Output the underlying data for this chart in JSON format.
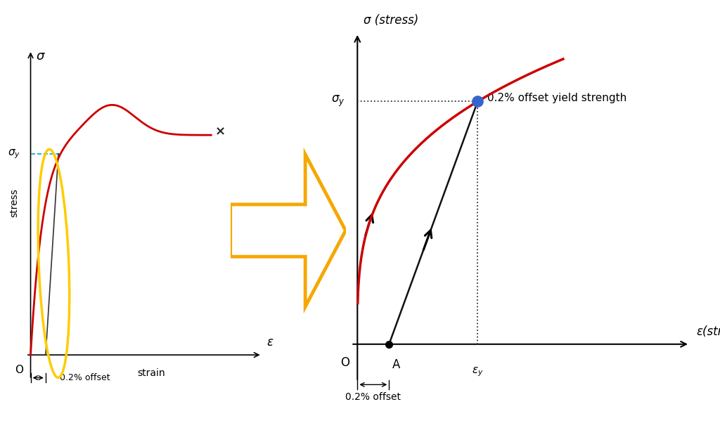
{
  "bg_color": "#ffffff",
  "left_diagram": {
    "sigma_label": "σ",
    "epsilon_label": "ε",
    "strain_label": "strain",
    "stress_label": "stress",
    "sigma_y_label": "σ_y",
    "origin_label": "O",
    "offset_label": "0.2% offset",
    "curve_color": "#cc0000",
    "offset_line_color": "#333333",
    "ellipse_color": "#ffcc00",
    "dashed_color": "#00aacc",
    "x_mark": "×"
  },
  "right_diagram": {
    "sigma_label": "σ (stress)",
    "epsilon_label": "ε(strain)",
    "sigma_y_label": "σ_y",
    "epsilon_y_label": "ε_y",
    "origin_label": "O",
    "point_a_label": "A",
    "offset_label": "0.2% offset",
    "yield_label": "0.2% offset yield strength",
    "curve_color": "#cc0000",
    "offset_line_color": "#111111",
    "dot_color": "#3366cc",
    "dot_color2": "#111111",
    "dashed_color": "#555555"
  },
  "arrow_color": "#f5a800",
  "arrow_outline": "#f5a800"
}
